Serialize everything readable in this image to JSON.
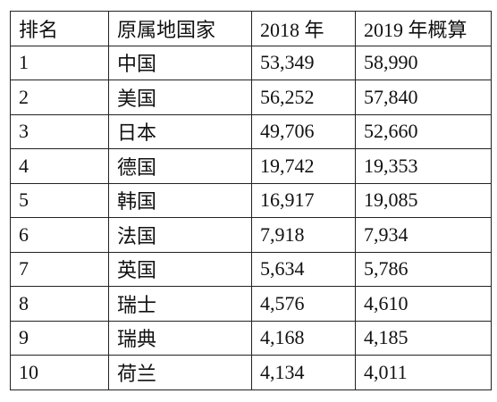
{
  "table": {
    "header": [
      "排名",
      "原属地国家",
      "2018 年",
      "2019 年概算"
    ],
    "rows": [
      [
        "1",
        "中国",
        "53,349",
        "58,990"
      ],
      [
        "2",
        "美国",
        "56,252",
        "57,840"
      ],
      [
        "3",
        "日本",
        "49,706",
        "52,660"
      ],
      [
        "4",
        "德国",
        "19,742",
        "19,353"
      ],
      [
        "5",
        "韩国",
        "16,917",
        "19,085"
      ],
      [
        "6",
        "法国",
        "7,918",
        "7,934"
      ],
      [
        "7",
        "英国",
        "5,634",
        "5,786"
      ],
      [
        "8",
        "瑞士",
        "4,576",
        "4,610"
      ],
      [
        "9",
        "瑞典",
        "4,168",
        "4,185"
      ],
      [
        "10",
        "荷兰",
        "4,134",
        "4,011"
      ]
    ]
  }
}
